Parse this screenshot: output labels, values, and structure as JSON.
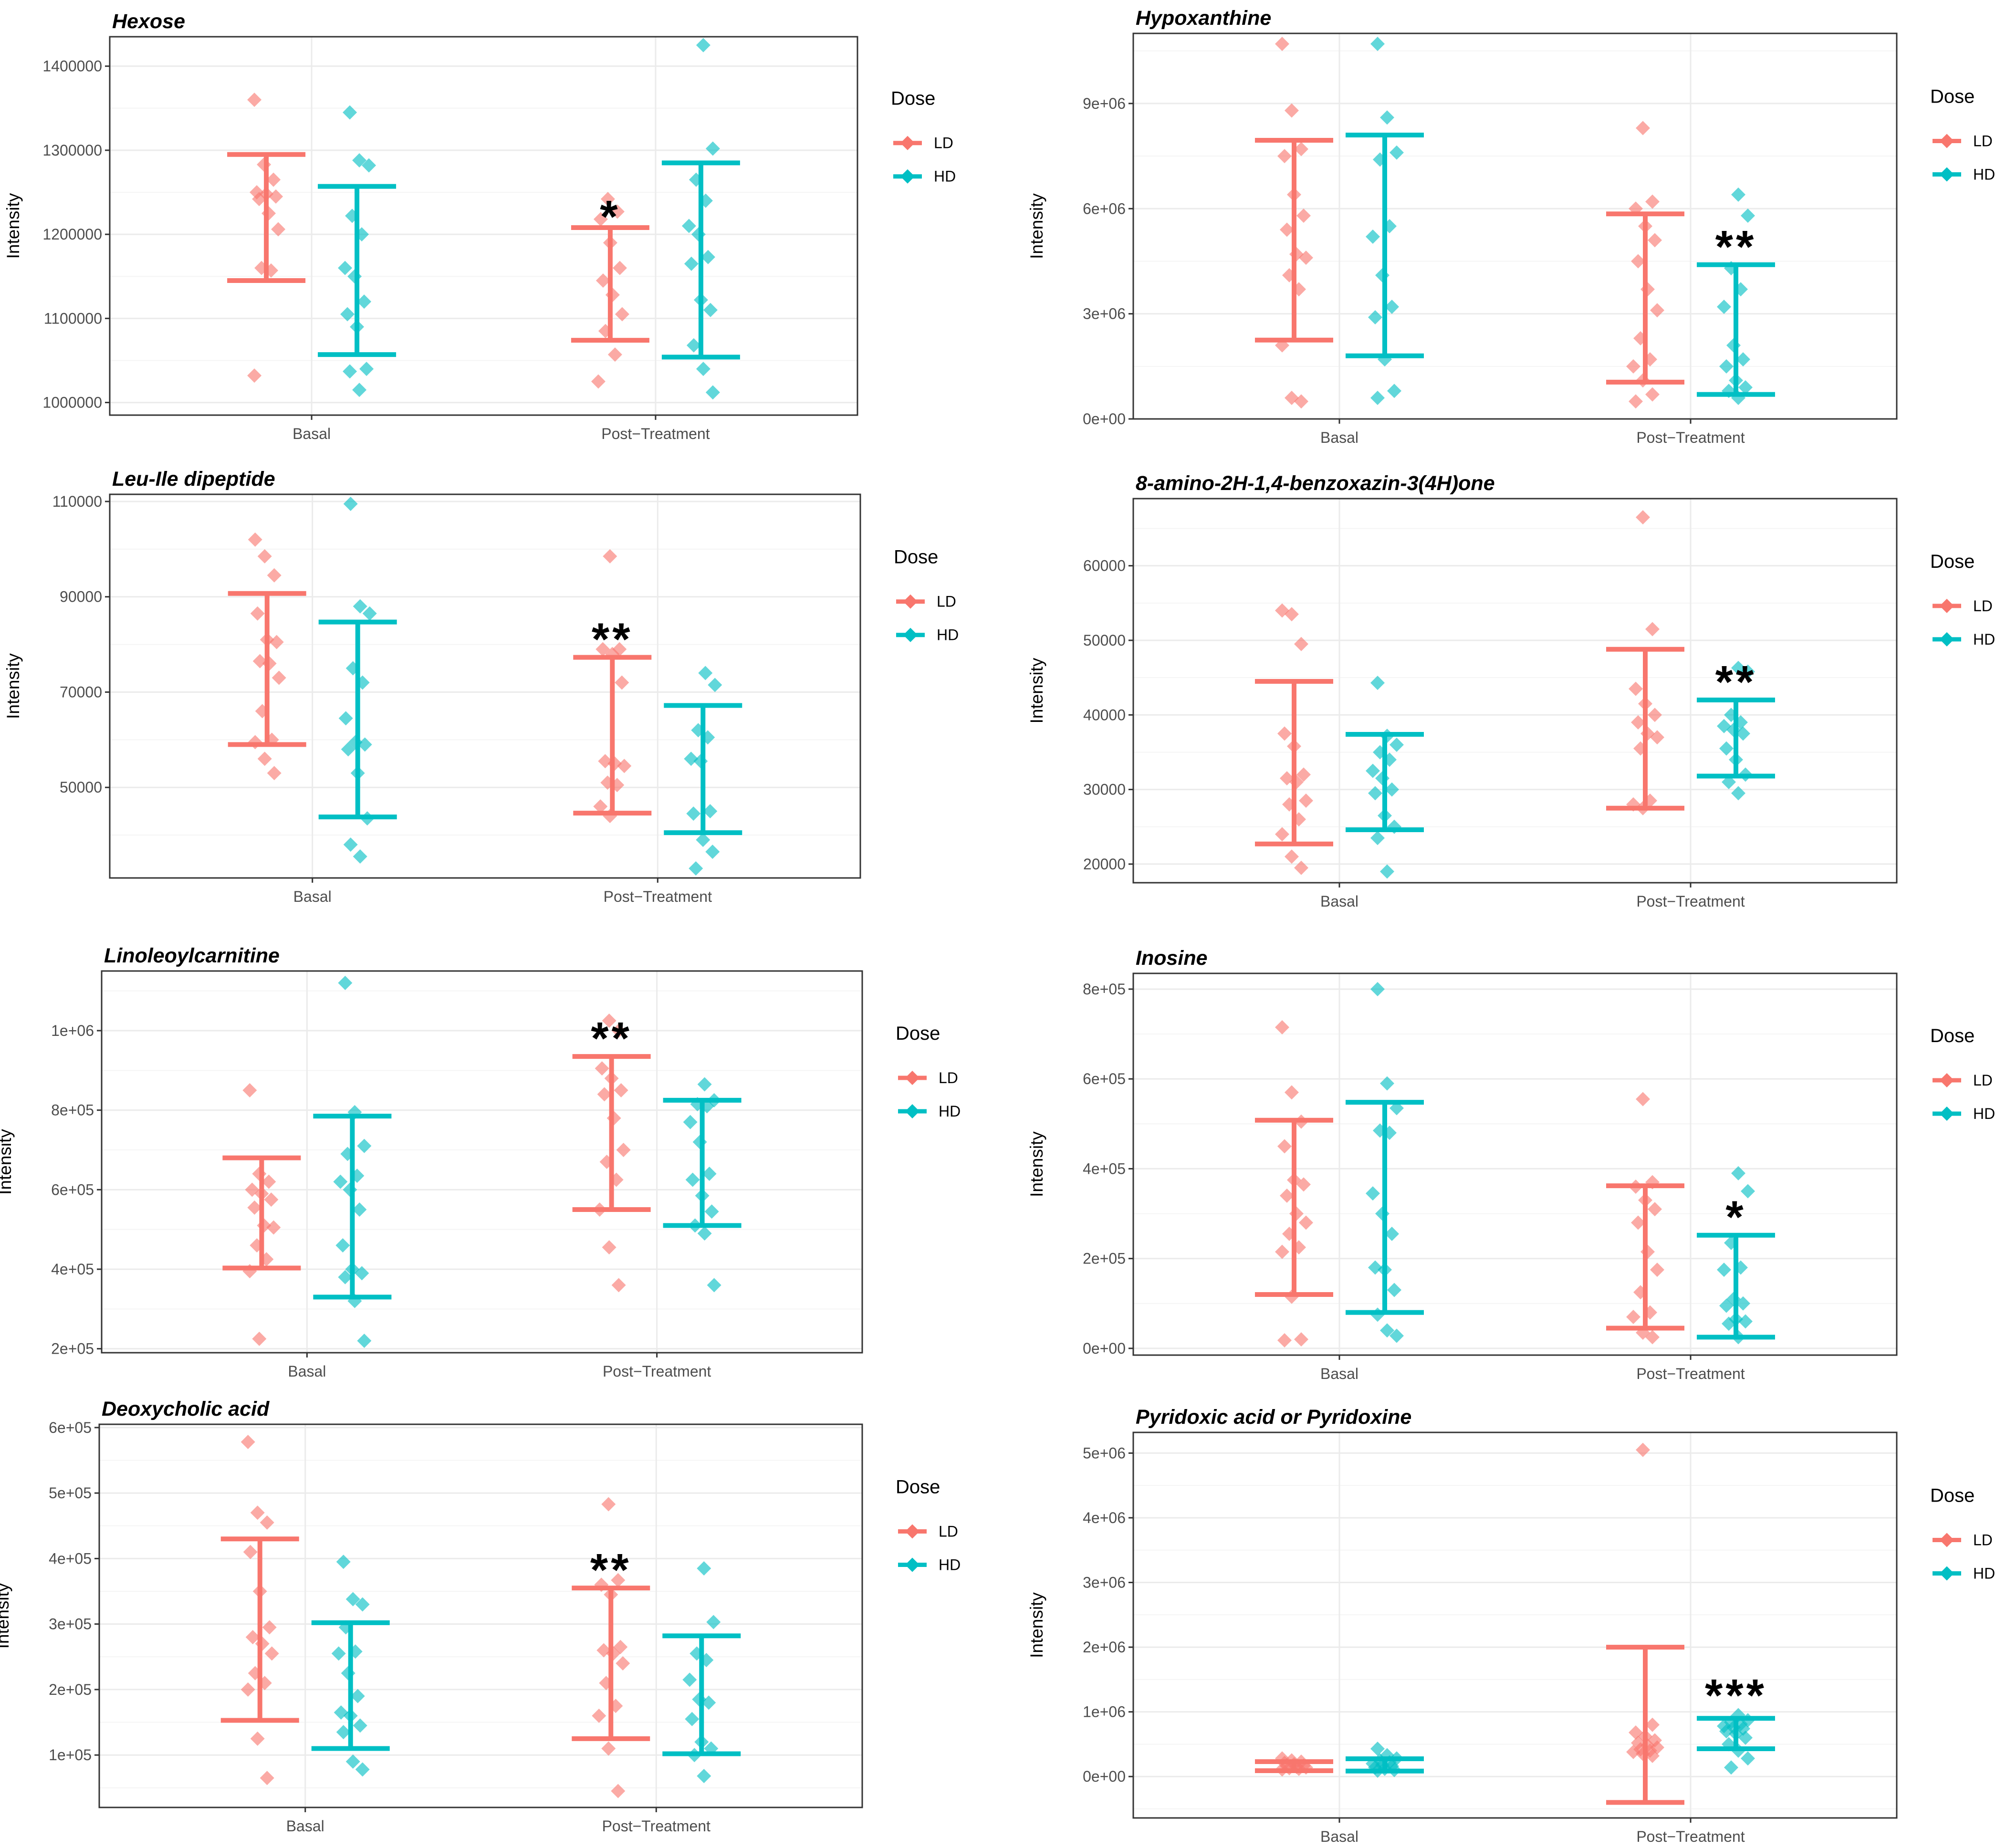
{
  "figure": {
    "legend_title": "Dose",
    "x_categories": [
      "Basal",
      "Post−Treatment"
    ]
  },
  "colors": {
    "LD": "#F8766D",
    "HD": "#00BFC4",
    "grid_major": "#EBEBEB",
    "grid_minor": "#F5F5F5",
    "axis_text": "#4d4d4d"
  },
  "chart_data": [
    {
      "type": "scatter",
      "title": "Hexose",
      "xlabel": "",
      "ylabel": "Intensity",
      "ylim": [
        985000,
        1435000
      ],
      "yticks": [
        1000000,
        1100000,
        1200000,
        1300000,
        1400000
      ],
      "ytick_labels": [
        "1000000",
        "1100000",
        "1200000",
        "1300000",
        "1400000"
      ],
      "categories": [
        "Basal",
        "Post−Treatment"
      ],
      "legend": [
        "LD",
        "HD"
      ],
      "significance": {
        "category": "Post−Treatment",
        "label": "*"
      },
      "series": [
        {
          "name": "LD",
          "category": "Basal",
          "error_bar": [
            1145000,
            1295000
          ],
          "values": [
            1360000,
            1283000,
            1265000,
            1250000,
            1248000,
            1245000,
            1242000,
            1225000,
            1206000,
            1160000,
            1157000,
            1032000
          ]
        },
        {
          "name": "HD",
          "category": "Basal",
          "error_bar": [
            1057000,
            1257000
          ],
          "values": [
            1345000,
            1288000,
            1282000,
            1222000,
            1200000,
            1160000,
            1150000,
            1120000,
            1105000,
            1090000,
            1040000,
            1037000,
            1015000
          ]
        },
        {
          "name": "LD",
          "category": "Post−Treatment",
          "error_bar": [
            1074000,
            1208000
          ],
          "values": [
            1242000,
            1227000,
            1218000,
            1190000,
            1160000,
            1145000,
            1128000,
            1105000,
            1085000,
            1057000,
            1025000
          ]
        },
        {
          "name": "HD",
          "category": "Post−Treatment",
          "error_bar": [
            1054000,
            1285000
          ],
          "values": [
            1425000,
            1302000,
            1265000,
            1240000,
            1210000,
            1200000,
            1173000,
            1165000,
            1122000,
            1110000,
            1068000,
            1040000,
            1012000
          ]
        }
      ]
    },
    {
      "type": "scatter",
      "title": "Hypoxanthine",
      "xlabel": "",
      "ylabel": "Intensity",
      "ylim": [
        0,
        11000000
      ],
      "yticks": [
        0,
        3000000,
        6000000,
        9000000
      ],
      "ytick_labels": [
        "0e+00",
        "3e+06",
        "6e+06",
        "9e+06"
      ],
      "categories": [
        "Basal",
        "Post−Treatment"
      ],
      "legend": [
        "LD",
        "HD"
      ],
      "significance": {
        "category": "Post−Treatment",
        "label": "**"
      },
      "series": [
        {
          "name": "LD",
          "category": "Basal",
          "error_bar": [
            2250000,
            7950000
          ],
          "values": [
            10700000,
            8800000,
            7700000,
            7500000,
            6400000,
            5800000,
            5400000,
            4700000,
            4600000,
            4100000,
            3700000,
            2100000,
            600000,
            500000
          ]
        },
        {
          "name": "HD",
          "category": "Basal",
          "error_bar": [
            1800000,
            8100000
          ],
          "values": [
            10700000,
            8600000,
            7600000,
            7400000,
            5500000,
            5200000,
            4100000,
            3200000,
            2900000,
            1700000,
            800000,
            600000
          ]
        },
        {
          "name": "LD",
          "category": "Post−Treatment",
          "error_bar": [
            1050000,
            5850000
          ],
          "values": [
            8300000,
            6200000,
            6000000,
            5500000,
            5100000,
            4500000,
            3700000,
            3100000,
            2300000,
            1700000,
            1500000,
            1100000,
            700000,
            500000
          ]
        },
        {
          "name": "HD",
          "category": "Post−Treatment",
          "error_bar": [
            700000,
            4400000
          ],
          "values": [
            6400000,
            5800000,
            4300000,
            3700000,
            3200000,
            2100000,
            1700000,
            1500000,
            1100000,
            900000,
            800000,
            600000
          ]
        }
      ]
    },
    {
      "type": "scatter",
      "title": "Leu-Ile dipeptide",
      "xlabel": "",
      "ylabel": "Intensity",
      "ylim": [
        31000,
        111500
      ],
      "yticks": [
        50000,
        70000,
        90000,
        110000
      ],
      "ytick_labels": [
        "50000",
        "70000",
        "90000",
        "110000"
      ],
      "categories": [
        "Basal",
        "Post−Treatment"
      ],
      "legend": [
        "LD",
        "HD"
      ],
      "significance": {
        "category": "Post−Treatment",
        "label": "**"
      },
      "series": [
        {
          "name": "LD",
          "category": "Basal",
          "error_bar": [
            59000,
            90700
          ],
          "values": [
            102000,
            98500,
            94500,
            86500,
            81000,
            80500,
            76500,
            76000,
            73000,
            66000,
            60000,
            59500,
            56000,
            53000
          ]
        },
        {
          "name": "HD",
          "category": "Basal",
          "error_bar": [
            43800,
            84700
          ],
          "values": [
            109500,
            88000,
            86500,
            75000,
            72000,
            64500,
            59500,
            59000,
            58000,
            53000,
            43500,
            38000,
            35500
          ]
        },
        {
          "name": "LD",
          "category": "Post−Treatment",
          "error_bar": [
            44600,
            77300
          ],
          "values": [
            98500,
            79000,
            79000,
            78000,
            72000,
            55500,
            55000,
            54500,
            51000,
            50500,
            46000,
            44000
          ]
        },
        {
          "name": "HD",
          "category": "Post−Treatment",
          "error_bar": [
            40500,
            67200
          ],
          "values": [
            74000,
            71500,
            62000,
            60500,
            56000,
            55500,
            45000,
            44500,
            39000,
            36500,
            33000
          ]
        }
      ]
    },
    {
      "type": "scatter",
      "title": "8-amino-2H-1,4-benzoxazin-3(4H)one",
      "xlabel": "",
      "ylabel": "Intensity",
      "ylim": [
        17500,
        69000
      ],
      "yticks": [
        20000,
        30000,
        40000,
        50000,
        60000
      ],
      "ytick_labels": [
        "20000",
        "30000",
        "40000",
        "50000",
        "60000"
      ],
      "categories": [
        "Basal",
        "Post−Treatment"
      ],
      "legend": [
        "LD",
        "HD"
      ],
      "significance": {
        "category": "Post−Treatment",
        "label": "**"
      },
      "series": [
        {
          "name": "LD",
          "category": "Basal",
          "error_bar": [
            22700,
            44500
          ],
          "values": [
            54000,
            53500,
            49500,
            37500,
            35800,
            32000,
            31500,
            31000,
            28500,
            28000,
            26000,
            24000,
            21000,
            19500
          ]
        },
        {
          "name": "HD",
          "category": "Basal",
          "error_bar": [
            24600,
            37400
          ],
          "values": [
            44300,
            37200,
            36000,
            35000,
            34000,
            32500,
            31500,
            30000,
            29500,
            26500,
            25000,
            23500,
            19000
          ]
        },
        {
          "name": "LD",
          "category": "Post−Treatment",
          "error_bar": [
            27500,
            48800
          ],
          "values": [
            66500,
            51500,
            43500,
            41500,
            40000,
            39000,
            37500,
            37000,
            35500,
            28500,
            28000,
            27500
          ]
        },
        {
          "name": "HD",
          "category": "Post−Treatment",
          "error_bar": [
            31800,
            42000
          ],
          "values": [
            46300,
            45800,
            40000,
            39000,
            38500,
            38000,
            37500,
            35500,
            34000,
            32000,
            31000,
            29500
          ]
        }
      ]
    },
    {
      "type": "scatter",
      "title": "Linoleoylcarnitine",
      "xlabel": "",
      "ylabel": "Intensity",
      "ylim": [
        190000,
        1150000
      ],
      "yticks": [
        200000,
        400000,
        600000,
        800000,
        1000000
      ],
      "ytick_labels": [
        "2e+05",
        "4e+05",
        "6e+05",
        "8e+05",
        "1e+06"
      ],
      "categories": [
        "Basal",
        "Post−Treatment"
      ],
      "legend": [
        "LD",
        "HD"
      ],
      "significance": {
        "category": "Post−Treatment",
        "label": "**"
      },
      "series": [
        {
          "name": "LD",
          "category": "Basal",
          "error_bar": [
            403000,
            680000
          ],
          "values": [
            850000,
            640000,
            620000,
            600000,
            590000,
            575000,
            555000,
            510000,
            505000,
            460000,
            425000,
            395000,
            225000
          ]
        },
        {
          "name": "HD",
          "category": "Basal",
          "error_bar": [
            330000,
            785000
          ],
          "values": [
            1120000,
            795000,
            710000,
            690000,
            635000,
            620000,
            600000,
            550000,
            460000,
            400000,
            390000,
            380000,
            320000,
            220000
          ]
        },
        {
          "name": "LD",
          "category": "Post−Treatment",
          "error_bar": [
            550000,
            935000
          ],
          "values": [
            1025000,
            1000000,
            905000,
            880000,
            850000,
            840000,
            780000,
            700000,
            670000,
            625000,
            550000,
            455000,
            360000
          ]
        },
        {
          "name": "HD",
          "category": "Post−Treatment",
          "error_bar": [
            510000,
            825000
          ],
          "values": [
            865000,
            825000,
            815000,
            810000,
            770000,
            720000,
            640000,
            625000,
            585000,
            545000,
            510000,
            490000,
            360000
          ]
        }
      ]
    },
    {
      "type": "scatter",
      "title": "Inosine",
      "xlabel": "",
      "ylabel": "Intensity",
      "ylim": [
        -15000,
        835000
      ],
      "yticks": [
        0,
        200000,
        400000,
        600000,
        800000
      ],
      "ytick_labels": [
        "0e+00",
        "2e+05",
        "4e+05",
        "6e+05",
        "8e+05"
      ],
      "categories": [
        "Basal",
        "Post−Treatment"
      ],
      "legend": [
        "LD",
        "HD"
      ],
      "significance": {
        "category": "Post−Treatment",
        "label": "*"
      },
      "series": [
        {
          "name": "LD",
          "category": "Basal",
          "error_bar": [
            120000,
            508000
          ],
          "values": [
            715000,
            570000,
            505000,
            450000,
            375000,
            365000,
            340000,
            300000,
            280000,
            255000,
            225000,
            215000,
            115000,
            20000,
            18000
          ]
        },
        {
          "name": "HD",
          "category": "Basal",
          "error_bar": [
            80000,
            548000
          ],
          "values": [
            800000,
            590000,
            535000,
            485000,
            480000,
            345000,
            300000,
            255000,
            180000,
            175000,
            130000,
            75000,
            40000,
            28000
          ]
        },
        {
          "name": "LD",
          "category": "Post−Treatment",
          "error_bar": [
            45000,
            362000
          ],
          "values": [
            555000,
            370000,
            360000,
            330000,
            310000,
            280000,
            215000,
            175000,
            125000,
            80000,
            70000,
            35000,
            25000
          ]
        },
        {
          "name": "HD",
          "category": "Post−Treatment",
          "error_bar": [
            25000,
            252000
          ],
          "values": [
            390000,
            350000,
            235000,
            180000,
            175000,
            110000,
            100000,
            95000,
            65000,
            60000,
            55000,
            25000
          ]
        }
      ]
    },
    {
      "type": "scatter",
      "title": "Deoxycholic acid",
      "xlabel": "",
      "ylabel": "Intensity",
      "ylim": [
        20000,
        605000
      ],
      "yticks": [
        100000,
        200000,
        300000,
        400000,
        500000,
        600000
      ],
      "ytick_labels": [
        "1e+05",
        "2e+05",
        "3e+05",
        "4e+05",
        "5e+05",
        "6e+05"
      ],
      "categories": [
        "Basal",
        "Post−Treatment"
      ],
      "legend": [
        "LD",
        "HD"
      ],
      "significance": {
        "category": "Post−Treatment",
        "label": "**"
      },
      "series": [
        {
          "name": "LD",
          "category": "Basal",
          "error_bar": [
            153000,
            430000
          ],
          "values": [
            578000,
            470000,
            455000,
            410000,
            350000,
            295000,
            280000,
            270000,
            255000,
            225000,
            210000,
            200000,
            125000,
            65000
          ]
        },
        {
          "name": "HD",
          "category": "Basal",
          "error_bar": [
            110000,
            302000
          ],
          "values": [
            395000,
            338000,
            330000,
            295000,
            258000,
            255000,
            225000,
            190000,
            165000,
            160000,
            145000,
            135000,
            90000,
            78000
          ]
        },
        {
          "name": "LD",
          "category": "Post−Treatment",
          "error_bar": [
            125000,
            355000
          ],
          "values": [
            483000,
            367000,
            360000,
            345000,
            265000,
            260000,
            255000,
            240000,
            210000,
            175000,
            160000,
            110000,
            45000
          ]
        },
        {
          "name": "HD",
          "category": "Post−Treatment",
          "error_bar": [
            102000,
            282000
          ],
          "values": [
            385000,
            303000,
            255000,
            245000,
            215000,
            185000,
            180000,
            155000,
            120000,
            110000,
            100000,
            68000
          ]
        }
      ]
    },
    {
      "type": "scatter",
      "title": "Pyridoxic acid or Pyridoxine",
      "xlabel": "",
      "ylabel": "Intensity",
      "ylim": [
        -640000,
        5320000
      ],
      "yticks": [
        0,
        1000000,
        2000000,
        3000000,
        4000000,
        5000000
      ],
      "ytick_labels": [
        "0e+00",
        "1e+06",
        "2e+06",
        "3e+06",
        "4e+06",
        "5e+06"
      ],
      "categories": [
        "Basal",
        "Post−Treatment"
      ],
      "legend": [
        "LD",
        "HD"
      ],
      "significance": {
        "category": "Post−Treatment",
        "label": "***"
      },
      "series": [
        {
          "name": "LD",
          "category": "Basal",
          "error_bar": [
            90000,
            230000
          ],
          "values": [
            280000,
            250000,
            230000,
            210000,
            190000,
            170000,
            160000,
            150000,
            140000,
            130000,
            120000,
            110000
          ]
        },
        {
          "name": "HD",
          "category": "Basal",
          "error_bar": [
            85000,
            275000
          ],
          "values": [
            430000,
            330000,
            280000,
            250000,
            220000,
            200000,
            180000,
            160000,
            140000,
            120000,
            100000,
            90000
          ]
        },
        {
          "name": "LD",
          "category": "Post−Treatment",
          "error_bar": [
            -400000,
            2000000
          ],
          "values": [
            5050000,
            800000,
            680000,
            620000,
            560000,
            520000,
            480000,
            450000,
            420000,
            400000,
            380000,
            350000,
            320000
          ]
        },
        {
          "name": "HD",
          "category": "Post−Treatment",
          "error_bar": [
            430000,
            900000
          ],
          "values": [
            950000,
            870000,
            840000,
            810000,
            780000,
            760000,
            740000,
            700000,
            660000,
            600000,
            500000,
            400000,
            280000,
            140000
          ]
        }
      ]
    }
  ]
}
